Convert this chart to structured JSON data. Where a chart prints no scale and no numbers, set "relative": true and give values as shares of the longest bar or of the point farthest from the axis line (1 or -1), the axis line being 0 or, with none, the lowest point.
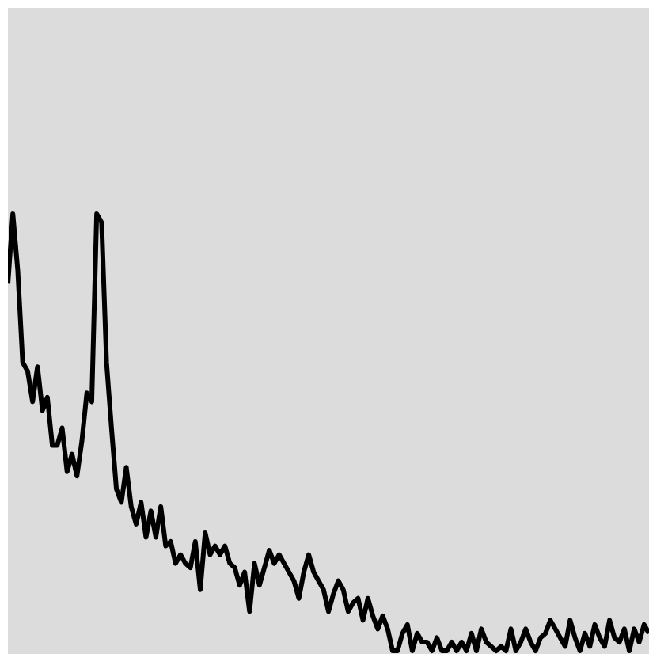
{
  "chart_data": {
    "type": "line",
    "relative": true,
    "marker": "none",
    "line_style": "solid",
    "categories": [
      null,
      null,
      null,
      null,
      null,
      null,
      null,
      null,
      null,
      null,
      null,
      null,
      null,
      null,
      null,
      null,
      null,
      null,
      null,
      null,
      null,
      null,
      null,
      null,
      null,
      null,
      null,
      null,
      null,
      null,
      null,
      null,
      null,
      null,
      null,
      null,
      null,
      null,
      null,
      null,
      null,
      null,
      null,
      null,
      null,
      null,
      null,
      null,
      null,
      null,
      null,
      null,
      null,
      null,
      null,
      null,
      null,
      null,
      null,
      null,
      null,
      null,
      null,
      null,
      null,
      null,
      null,
      null,
      null,
      null,
      null,
      null,
      null,
      null,
      null,
      null,
      null,
      null,
      null,
      null,
      null,
      null,
      null,
      null,
      null,
      null,
      null,
      null,
      null,
      null,
      null,
      null,
      null,
      null,
      null,
      null,
      null,
      null,
      null,
      null,
      null,
      null,
      null,
      null,
      null,
      null,
      null,
      null,
      null,
      null,
      null,
      null,
      null,
      null,
      null,
      null,
      null,
      null,
      null,
      null,
      null,
      null,
      null,
      null,
      null,
      null,
      null,
      null,
      null,
      null,
      null
    ],
    "series": [
      {
        "color": "#000000",
        "values": [
          0.84,
          1,
          0.87,
          0.66,
          0.64,
          0.57,
          0.65,
          0.55,
          0.58,
          0.47,
          0.47,
          0.51,
          0.41,
          0.45,
          0.4,
          0.48,
          0.59,
          0.57,
          1,
          0.98,
          0.66,
          0.51,
          0.37,
          0.34,
          0.42,
          0.33,
          0.29,
          0.34,
          0.26,
          0.32,
          0.26,
          0.33,
          0.24,
          0.25,
          0.2,
          0.22,
          0.2,
          0.19,
          0.25,
          0.14,
          0.27,
          0.22,
          0.24,
          0.22,
          0.24,
          0.2,
          0.19,
          0.15,
          0.18,
          0.09,
          0.2,
          0.15,
          0.19,
          0.23,
          0.2,
          0.22,
          0.2,
          0.18,
          0.16,
          0.12,
          0.18,
          0.22,
          0.18,
          0.16,
          0.14,
          0.09,
          0.13,
          0.16,
          0.14,
          0.09,
          0.11,
          0.12,
          0.07,
          0.12,
          0.08,
          0.05,
          0.08,
          0.05,
          0,
          0,
          0.04,
          0.06,
          0,
          0.04,
          0.02,
          0.02,
          0,
          0.03,
          0,
          0,
          0.02,
          0,
          0.02,
          0,
          0.04,
          0,
          0.05,
          0.02,
          0.01,
          0,
          0.01,
          0,
          0.05,
          0,
          0.02,
          0.05,
          0.02,
          0,
          0.03,
          0.04,
          0.07,
          0.05,
          0.03,
          0.01,
          0.07,
          0.03,
          0,
          0.04,
          0.01,
          0.06,
          0.03,
          0.01,
          0.07,
          0.03,
          0.02,
          0.05,
          0,
          0.05,
          0.02,
          0.06,
          0.04
        ]
      }
    ]
  }
}
